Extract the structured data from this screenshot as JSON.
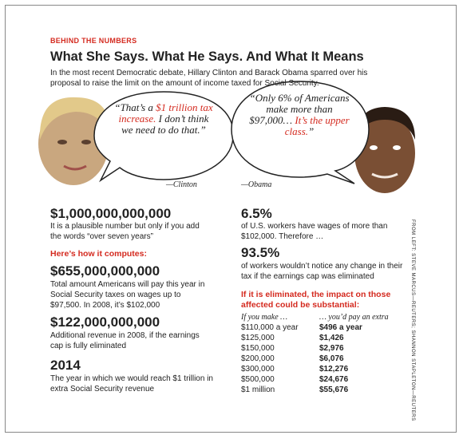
{
  "header": {
    "kicker": "BEHIND THE NUMBERS",
    "title": "What She Says. What He Says. And What It Means",
    "intro": "In the most recent Democratic debate, Hillary Clinton and Barack Obama sparred over his proposal to raise the limit on the amount of income taxed for Social Security."
  },
  "quotes": [
    {
      "segments": [
        {
          "text": "“That’s a ",
          "color": "#222222"
        },
        {
          "text": "$1 trillion tax increase.",
          "color": "#d42a1f"
        },
        {
          "text": " I don’t think we need to do that.”",
          "color": "#222222"
        }
      ],
      "attribution": "—Clinton"
    },
    {
      "segments": [
        {
          "text": "“Only 6% of Americans make more than $97,000… ",
          "color": "#222222"
        },
        {
          "text": "It’s the upper class.",
          "color": "#d42a1f"
        },
        {
          "text": "”",
          "color": "#222222"
        }
      ],
      "attribution": "—Obama"
    }
  ],
  "left": {
    "items": [
      {
        "figure": "$1,000,000,000,000",
        "text": "It is a plausible number but only if you add the words “over seven years”"
      },
      {
        "figure": "$655,000,000,000",
        "text": "Total amount Americans will pay this year in Social Security taxes on wages up to $97,500. In 2008, it’s $102,000"
      },
      {
        "figure": "$122,000,000,000",
        "text": "Additional revenue in 2008, if the earnings cap is fully eliminated"
      },
      {
        "figure": "2014",
        "text": "The year in which we would reach $1 trillion in extra Social Security revenue"
      }
    ],
    "heading": "Here’s how it computes:"
  },
  "right": {
    "items": [
      {
        "figure": "6.5%",
        "text": "of U.S. workers have wages of more than $102,000. Therefore …"
      },
      {
        "figure": "93.5%",
        "text": "of workers wouldn’t notice any change in their tax if the earnings cap was eliminated"
      }
    ],
    "heading": "If it is eliminated, the impact on those affected could be substantial:",
    "table": {
      "header": [
        "If you make …",
        "… you’d pay an extra"
      ],
      "rows": [
        [
          "$110,000 a year",
          "$496 a year"
        ],
        [
          "$125,000",
          "$1,426"
        ],
        [
          "$150,000",
          "$2,976"
        ],
        [
          "$200,000",
          "$6,076"
        ],
        [
          "$300,000",
          "$12,276"
        ],
        [
          "$500,000",
          "$24,676"
        ],
        [
          "$1 million",
          "$55,676"
        ]
      ]
    }
  },
  "credit": "FROM LEFT: STEVE MARCUS—REUTERS; SHANNON STAPLETON—REUTERS"
}
